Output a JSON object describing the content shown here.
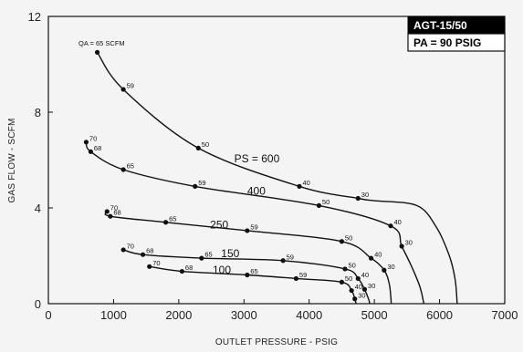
{
  "chart_data": {
    "type": "line",
    "title": "",
    "xlabel": "OUTLET PRESSURE - PSIG",
    "ylabel": "GAS FLOW - SCFM",
    "xlim": [
      0,
      7000
    ],
    "ylim": [
      0,
      12
    ],
    "x_ticks": [
      "0",
      "1000",
      "2000",
      "3000",
      "4000",
      "5000",
      "6000",
      "7000"
    ],
    "y_ticks": [
      "0",
      "4",
      "8",
      "12"
    ],
    "grid": false,
    "legend_box": {
      "line1": "AGT-15/50",
      "line2": "PA = 90 PSIG"
    },
    "qa_annotation": "QA = 65 SCFM",
    "series": [
      {
        "name": "PS = 600",
        "points": [
          {
            "x": 750,
            "y": 10.5,
            "label": ""
          },
          {
            "x": 1150,
            "y": 8.95,
            "label": "59"
          },
          {
            "x": 2300,
            "y": 6.5,
            "label": "50"
          },
          {
            "x": 3850,
            "y": 4.9,
            "label": "40"
          },
          {
            "x": 4750,
            "y": 4.4,
            "label": "30"
          }
        ],
        "tail": [
          [
            5000,
            4.3
          ],
          [
            5650,
            4.1
          ],
          [
            5950,
            3.2
          ],
          [
            6150,
            2.0
          ],
          [
            6240,
            1.0
          ],
          [
            6270,
            0
          ]
        ]
      },
      {
        "name": "400",
        "points": [
          {
            "x": 580,
            "y": 6.75,
            "label": "70"
          },
          {
            "x": 650,
            "y": 6.35,
            "label": "68"
          },
          {
            "x": 1150,
            "y": 5.6,
            "label": "65"
          },
          {
            "x": 2250,
            "y": 4.9,
            "label": "59"
          },
          {
            "x": 4150,
            "y": 4.1,
            "label": "50"
          },
          {
            "x": 5250,
            "y": 3.25,
            "label": "40"
          },
          {
            "x": 5420,
            "y": 2.4,
            "label": "30"
          }
        ],
        "tail": [
          [
            5580,
            1.5
          ],
          [
            5700,
            0.7
          ],
          [
            5760,
            0
          ]
        ]
      },
      {
        "name": "250",
        "points": [
          {
            "x": 900,
            "y": 3.85,
            "label": "70"
          },
          {
            "x": 950,
            "y": 3.65,
            "label": "68"
          },
          {
            "x": 1800,
            "y": 3.4,
            "label": "65"
          },
          {
            "x": 3050,
            "y": 3.05,
            "label": "59"
          },
          {
            "x": 4500,
            "y": 2.6,
            "label": "50"
          },
          {
            "x": 4950,
            "y": 1.9,
            "label": "40"
          },
          {
            "x": 5150,
            "y": 1.4,
            "label": "30"
          }
        ],
        "tail": [
          [
            5230,
            0.8
          ],
          [
            5260,
            0
          ]
        ]
      },
      {
        "name": "150",
        "points": [
          {
            "x": 1150,
            "y": 2.25,
            "label": "70"
          },
          {
            "x": 1450,
            "y": 2.05,
            "label": "68"
          },
          {
            "x": 2350,
            "y": 1.9,
            "label": "65"
          },
          {
            "x": 3600,
            "y": 1.8,
            "label": "59"
          },
          {
            "x": 4550,
            "y": 1.45,
            "label": "50"
          },
          {
            "x": 4750,
            "y": 1.05,
            "label": "40"
          },
          {
            "x": 4850,
            "y": 0.6,
            "label": "30"
          }
        ],
        "tail": [
          [
            4910,
            0.2
          ],
          [
            4930,
            0
          ]
        ]
      },
      {
        "name": "100",
        "points": [
          {
            "x": 1550,
            "y": 1.55,
            "label": "70"
          },
          {
            "x": 2050,
            "y": 1.35,
            "label": "68"
          },
          {
            "x": 3050,
            "y": 1.2,
            "label": "65"
          },
          {
            "x": 3800,
            "y": 1.05,
            "label": "59"
          },
          {
            "x": 4500,
            "y": 0.9,
            "label": "50"
          },
          {
            "x": 4650,
            "y": 0.55,
            "label": "40"
          },
          {
            "x": 4700,
            "y": 0.2,
            "label": "30"
          }
        ],
        "tail": [
          [
            4720,
            0
          ]
        ]
      }
    ]
  }
}
